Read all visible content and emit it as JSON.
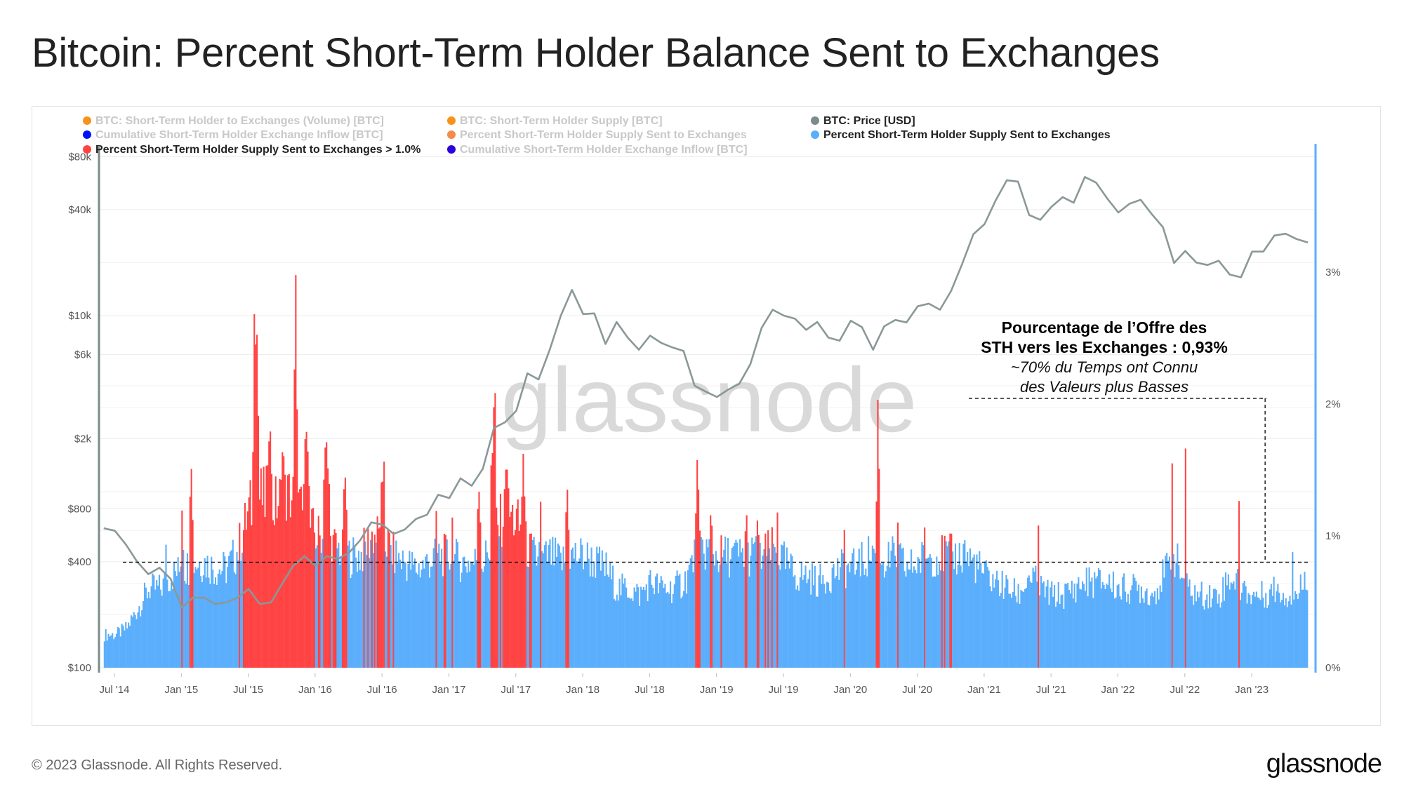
{
  "title": "Bitcoin: Percent Short-Term Holder Balance Sent to Exchanges",
  "footer": "© 2023 Glassnode. All Rights Reserved.",
  "logo": "glassnode",
  "watermark": "glassnode",
  "colors": {
    "price": "#8a9898",
    "percent": "#5aaefb",
    "above": "#ff4343",
    "axis_right": "#5aaefb"
  },
  "legend": [
    {
      "label": "BTC: Short-Term Holder to Exchanges (Volume) [BTC]",
      "color": "#f7931a",
      "active": false
    },
    {
      "label": "BTC: Short-Term Holder Supply [BTC]",
      "color": "#f7931a",
      "active": false
    },
    {
      "label": "BTC: Price [USD]",
      "color": "#7c8b8b",
      "active": true
    },
    {
      "label": "Cumulative Short-Term Holder Exchange Inflow [BTC]",
      "color": "#0010ff",
      "active": false
    },
    {
      "label": "Percent Short-Term Holder Supply Sent to Exchanges",
      "color": "#f58a4a",
      "active": false
    },
    {
      "label": "Percent Short-Term Holder Supply Sent to Exchanges",
      "color": "#5aaefb",
      "active": true
    },
    {
      "label": "Percent Short-Term Holder Supply Sent to Exchanges > 1.0%",
      "color": "#ff4343",
      "active": true
    },
    {
      "label": "Cumulative Short-Term Holder Exchange Inflow [BTC]",
      "color": "#2a00e0",
      "active": false
    }
  ],
  "annotation": {
    "line1": "Pourcentage de l’Offre des",
    "line2": "STH vers les Exchanges : 0,93%",
    "line3": "~70% du Temps ont Connu",
    "line4": "des Valeurs plus Basses"
  },
  "chart_data": {
    "type": "bar+line",
    "title": "Bitcoin: Percent Short-Term Holder Balance Sent to Exchanges",
    "x_ticks": [
      "Jul '14",
      "Jan '15",
      "Jul '15",
      "Jan '16",
      "Jul '16",
      "Jan '17",
      "Jul '17",
      "Jan '18",
      "Jul '18",
      "Jan '19",
      "Jul '19",
      "Jan '20",
      "Jul '20",
      "Jan '21",
      "Jul '21",
      "Jan '22",
      "Jul '22",
      "Jan '23"
    ],
    "x_tick_years": [
      2014.5,
      2015,
      2015.5,
      2016,
      2016.5,
      2017,
      2017.5,
      2018,
      2018.5,
      2019,
      2019.5,
      2020,
      2020.5,
      2021,
      2021.5,
      2022,
      2022.5,
      2023
    ],
    "y_left": {
      "label": "Price [USD]",
      "scale": "log",
      "range": [
        100,
        80000
      ],
      "ticks": [
        {
          "v": 100,
          "t": "$100"
        },
        {
          "v": 400,
          "t": "$400"
        },
        {
          "v": 800,
          "t": "$800"
        },
        {
          "v": 2000,
          "t": "$2k"
        },
        {
          "v": 6000,
          "t": "$6k"
        },
        {
          "v": 10000,
          "t": "$10k"
        },
        {
          "v": 40000,
          "t": "$40k"
        },
        {
          "v": 80000,
          "t": "$80k"
        }
      ]
    },
    "y_right": {
      "label": "Percent",
      "range": [
        0,
        3.5
      ],
      "ticks": [
        {
          "v": 0,
          "t": "0%"
        },
        {
          "v": 1,
          "t": "1%"
        },
        {
          "v": 2,
          "t": "2%"
        },
        {
          "v": 3,
          "t": "3%"
        }
      ]
    },
    "threshold_pct": 1.0,
    "reference_line_pct": 0.8,
    "annotation_marker_year": 2023.1,
    "series_start_year": 2014.42,
    "series_step_years": 0.08333,
    "price_monthly": [
      620,
      600,
      500,
      400,
      340,
      370,
      320,
      220,
      250,
      250,
      230,
      235,
      250,
      280,
      230,
      235,
      300,
      380,
      430,
      380,
      430,
      415,
      450,
      530,
      670,
      650,
      575,
      610,
      700,
      740,
      960,
      920,
      1190,
      1080,
      1350,
      2300,
      2480,
      2880,
      4700,
      4340,
      6400,
      10000,
      14000,
      10200,
      10300,
      6900,
      9200,
      7500,
      6400,
      7700,
      7000,
      6600,
      6300,
      4000,
      3700,
      3450,
      3800,
      4100,
      5300,
      8500,
      10800,
      10000,
      9600,
      8300,
      9200,
      7500,
      7200,
      9350,
      8600,
      6400,
      8700,
      9450,
      9150,
      11300,
      11700,
      10800,
      13800,
      19700,
      29000,
      33100,
      45200,
      58800,
      57700,
      37300,
      35000,
      41500,
      47100,
      43800,
      61300,
      57000,
      46300,
      38500,
      43200,
      45500,
      37700,
      31800,
      19900,
      23300,
      20000,
      19400,
      20500,
      17100,
      16500,
      23100,
      23100,
      28500,
      29200,
      27200,
      26000
    ],
    "percent_monthly": [
      0.25,
      0.25,
      0.3,
      0.45,
      0.6,
      0.6,
      0.7,
      0.75,
      0.8,
      0.8,
      0.75,
      0.75,
      0.9,
      1.2,
      1.3,
      1.2,
      1.3,
      1.3,
      1.1,
      1.0,
      0.95,
      0.9,
      0.85,
      0.85,
      1.0,
      1.0,
      0.85,
      0.8,
      0.75,
      0.8,
      0.85,
      0.85,
      0.8,
      0.8,
      0.8,
      1.0,
      1.2,
      1.1,
      0.9,
      0.8,
      0.85,
      0.8,
      0.85,
      0.85,
      0.8,
      0.75,
      0.6,
      0.6,
      0.55,
      0.65,
      0.6,
      0.6,
      0.65,
      0.85,
      0.9,
      0.85,
      0.85,
      0.85,
      0.85,
      0.85,
      0.9,
      0.8,
      0.7,
      0.7,
      0.65,
      0.7,
      0.75,
      0.75,
      0.8,
      0.9,
      0.8,
      0.85,
      0.75,
      0.8,
      0.85,
      0.85,
      0.85,
      0.85,
      0.8,
      0.7,
      0.65,
      0.6,
      0.55,
      0.7,
      0.6,
      0.55,
      0.55,
      0.6,
      0.65,
      0.65,
      0.65,
      0.6,
      0.6,
      0.6,
      0.55,
      0.7,
      0.85,
      0.6,
      0.55,
      0.55,
      0.55,
      0.7,
      0.6,
      0.55,
      0.55,
      0.6,
      0.55,
      0.55,
      0.75
    ],
    "percent_spikes": [
      {
        "year": 2014.88,
        "peak": 1.05,
        "width": 0.01
      },
      {
        "year": 2015.0,
        "peak": 1.55,
        "width": 0.015
      },
      {
        "year": 2015.07,
        "peak": 1.9,
        "width": 0.02
      },
      {
        "year": 2015.55,
        "peak": 3.0,
        "width": 0.03
      },
      {
        "year": 2015.65,
        "peak": 2.0,
        "width": 0.04
      },
      {
        "year": 2015.75,
        "peak": 1.9,
        "width": 0.03
      },
      {
        "year": 2015.85,
        "peak": 3.05,
        "width": 0.025
      },
      {
        "year": 2015.93,
        "peak": 2.2,
        "width": 0.03
      },
      {
        "year": 2016.08,
        "peak": 1.8,
        "width": 0.05
      },
      {
        "year": 2016.22,
        "peak": 1.55,
        "width": 0.03
      },
      {
        "year": 2016.5,
        "peak": 1.75,
        "width": 0.03
      },
      {
        "year": 2016.9,
        "peak": 1.2,
        "width": 0.01
      },
      {
        "year": 2017.02,
        "peak": 1.4,
        "width": 0.015
      },
      {
        "year": 2017.22,
        "peak": 1.6,
        "width": 0.025
      },
      {
        "year": 2017.33,
        "peak": 2.4,
        "width": 0.03
      },
      {
        "year": 2017.42,
        "peak": 1.8,
        "width": 0.03
      },
      {
        "year": 2017.55,
        "peak": 1.7,
        "width": 0.02
      },
      {
        "year": 2017.68,
        "peak": 1.3,
        "width": 0.02
      },
      {
        "year": 2017.88,
        "peak": 1.6,
        "width": 0.02
      },
      {
        "year": 2017.98,
        "peak": 1.2,
        "width": 0.02
      },
      {
        "year": 2018.85,
        "peak": 1.7,
        "width": 0.03
      },
      {
        "year": 2018.95,
        "peak": 1.4,
        "width": 0.02
      },
      {
        "year": 2019.22,
        "peak": 1.4,
        "width": 0.02
      },
      {
        "year": 2019.3,
        "peak": 1.3,
        "width": 0.02
      },
      {
        "year": 2019.45,
        "peak": 1.2,
        "width": 0.015
      },
      {
        "year": 2019.95,
        "peak": 1.05,
        "width": 0.008
      },
      {
        "year": 2020.05,
        "peak": 1.05,
        "width": 0.008
      },
      {
        "year": 2020.2,
        "peak": 2.4,
        "width": 0.015
      },
      {
        "year": 2020.35,
        "peak": 1.2,
        "width": 0.02
      },
      {
        "year": 2020.55,
        "peak": 1.4,
        "width": 0.02
      },
      {
        "year": 2020.7,
        "peak": 1.25,
        "width": 0.015
      },
      {
        "year": 2020.85,
        "peak": 1.05,
        "width": 0.01
      },
      {
        "year": 2021.4,
        "peak": 1.1,
        "width": 0.008
      },
      {
        "year": 2022.4,
        "peak": 1.8,
        "width": 0.012
      },
      {
        "year": 2022.5,
        "peak": 1.75,
        "width": 0.012
      },
      {
        "year": 2022.9,
        "peak": 1.45,
        "width": 0.01
      },
      {
        "year": 2023.3,
        "peak": 1.05,
        "width": 0.01
      }
    ]
  }
}
